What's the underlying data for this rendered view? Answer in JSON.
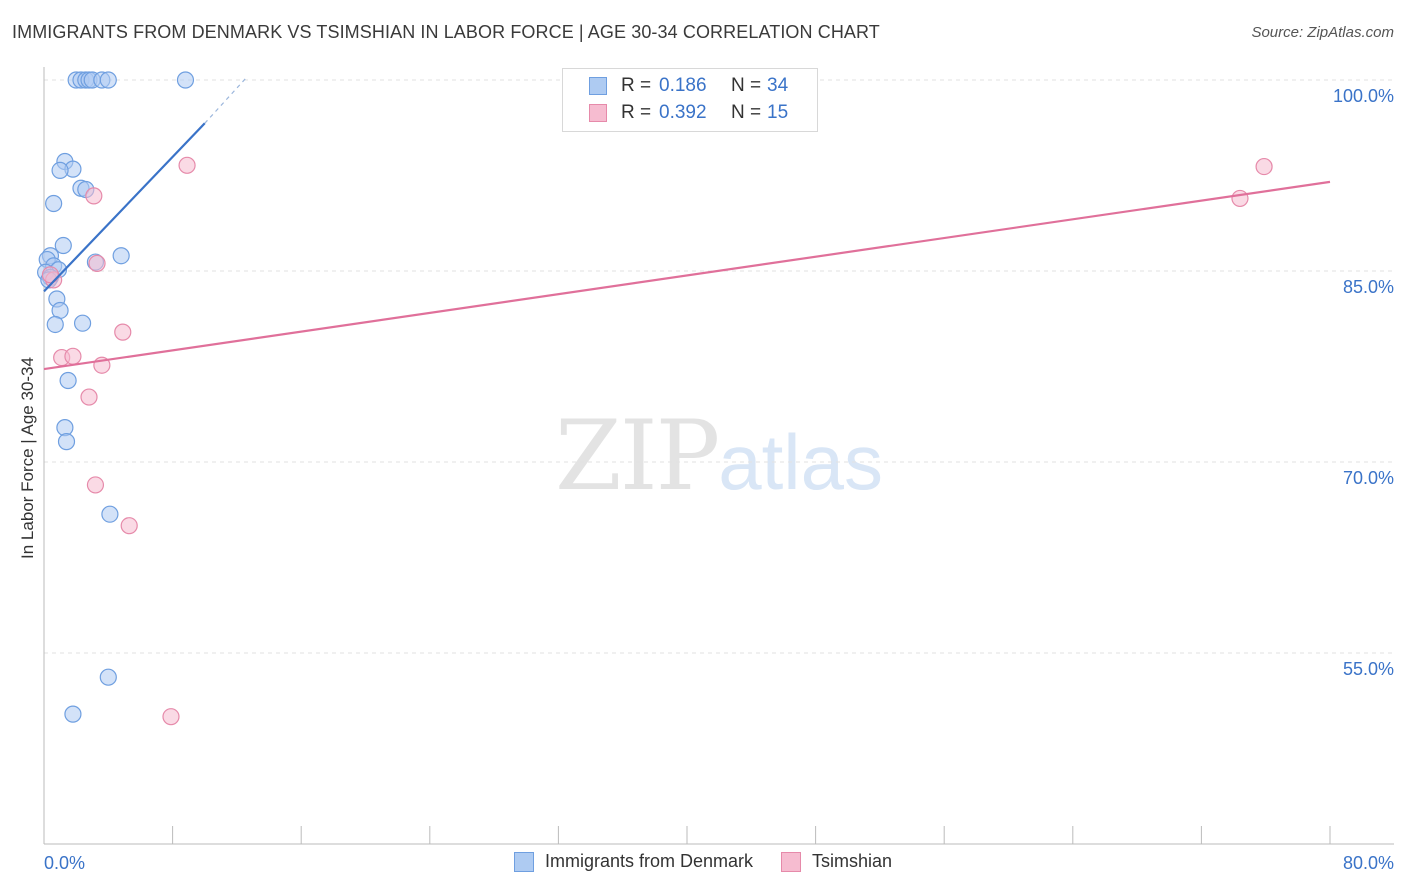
{
  "title": "IMMIGRANTS FROM DENMARK VS TSIMSHIAN IN LABOR FORCE | AGE 30-34 CORRELATION CHART",
  "source": "Source: ZipAtlas.com",
  "watermark": {
    "zip": "ZIP",
    "atlas": "atlas"
  },
  "colors": {
    "blue_fill": "#aecbf2",
    "blue_stroke": "#6f9fe0",
    "blue_line": "#3a73c8",
    "pink_fill": "#f6bcd0",
    "pink_stroke": "#e68aaa",
    "pink_line": "#e0709a",
    "tick_label": "#3a73c8",
    "grid": "#e2e2e2"
  },
  "legend_top": [
    {
      "r_label": "R =",
      "r_value": "0.186",
      "n_label": "N =",
      "n_value": "34"
    },
    {
      "r_label": "R =",
      "r_value": "0.392",
      "n_label": "N =",
      "n_value": "15"
    }
  ],
  "chart_data": {
    "type": "scatter",
    "title": "IMMIGRANTS FROM DENMARK VS TSIMSHIAN IN LABOR FORCE | AGE 30-34 CORRELATION CHART",
    "xlabel": "",
    "ylabel": "In Labor Force | Age 30-34",
    "xlim": [
      0,
      80
    ],
    "ylim": [
      40,
      101.5
    ],
    "x_tick_labels": [
      "0.0%",
      "80.0%"
    ],
    "y_ticks": [
      55,
      70,
      85,
      100
    ],
    "y_tick_labels": [
      "55.0%",
      "70.0%",
      "85.0%",
      "100.0%"
    ],
    "grid": true,
    "legend_position": "bottom",
    "series": [
      {
        "name": "Immigrants from Denmark",
        "points": [
          [
            2.0,
            100
          ],
          [
            2.3,
            100
          ],
          [
            2.6,
            100
          ],
          [
            2.8,
            100
          ],
          [
            3.0,
            100
          ],
          [
            3.6,
            100
          ],
          [
            4.0,
            100
          ],
          [
            8.8,
            100
          ],
          [
            1.3,
            93.6
          ],
          [
            1.8,
            93.0
          ],
          [
            1.0,
            92.9
          ],
          [
            2.3,
            91.5
          ],
          [
            2.6,
            91.4
          ],
          [
            0.6,
            90.3
          ],
          [
            1.2,
            87.0
          ],
          [
            0.4,
            86.2
          ],
          [
            4.8,
            86.2
          ],
          [
            0.2,
            85.9
          ],
          [
            3.2,
            85.7
          ],
          [
            0.6,
            85.4
          ],
          [
            0.9,
            85.1
          ],
          [
            0.1,
            84.9
          ],
          [
            0.4,
            84.5
          ],
          [
            0.8,
            82.8
          ],
          [
            1.0,
            81.9
          ],
          [
            2.4,
            80.9
          ],
          [
            0.7,
            80.8
          ],
          [
            1.5,
            76.4
          ],
          [
            1.3,
            72.7
          ],
          [
            1.4,
            71.6
          ],
          [
            4.1,
            65.9
          ],
          [
            4.0,
            53.1
          ],
          [
            1.8,
            50.2
          ],
          [
            0.3,
            84.3
          ]
        ]
      },
      {
        "name": "Tsimshian",
        "points": [
          [
            8.9,
            93.3
          ],
          [
            3.1,
            90.9
          ],
          [
            3.3,
            85.6
          ],
          [
            0.6,
            84.3
          ],
          [
            4.9,
            80.2
          ],
          [
            1.1,
            78.2
          ],
          [
            1.8,
            78.3
          ],
          [
            3.6,
            77.6
          ],
          [
            2.8,
            75.1
          ],
          [
            3.2,
            68.2
          ],
          [
            5.3,
            65.0
          ],
          [
            7.9,
            50.0
          ],
          [
            75.9,
            93.2
          ],
          [
            74.4,
            90.7
          ],
          [
            0.4,
            84.7
          ]
        ]
      }
    ],
    "trendlines": [
      {
        "series": "Immigrants from Denmark",
        "x": [
          0,
          10.0
        ],
        "y": [
          83.4,
          96.6
        ],
        "dashed_extension_to": [
          12.6,
          100.2
        ]
      },
      {
        "series": "Tsimshian",
        "x": [
          0,
          80
        ],
        "y": [
          77.3,
          92.0
        ]
      }
    ]
  }
}
